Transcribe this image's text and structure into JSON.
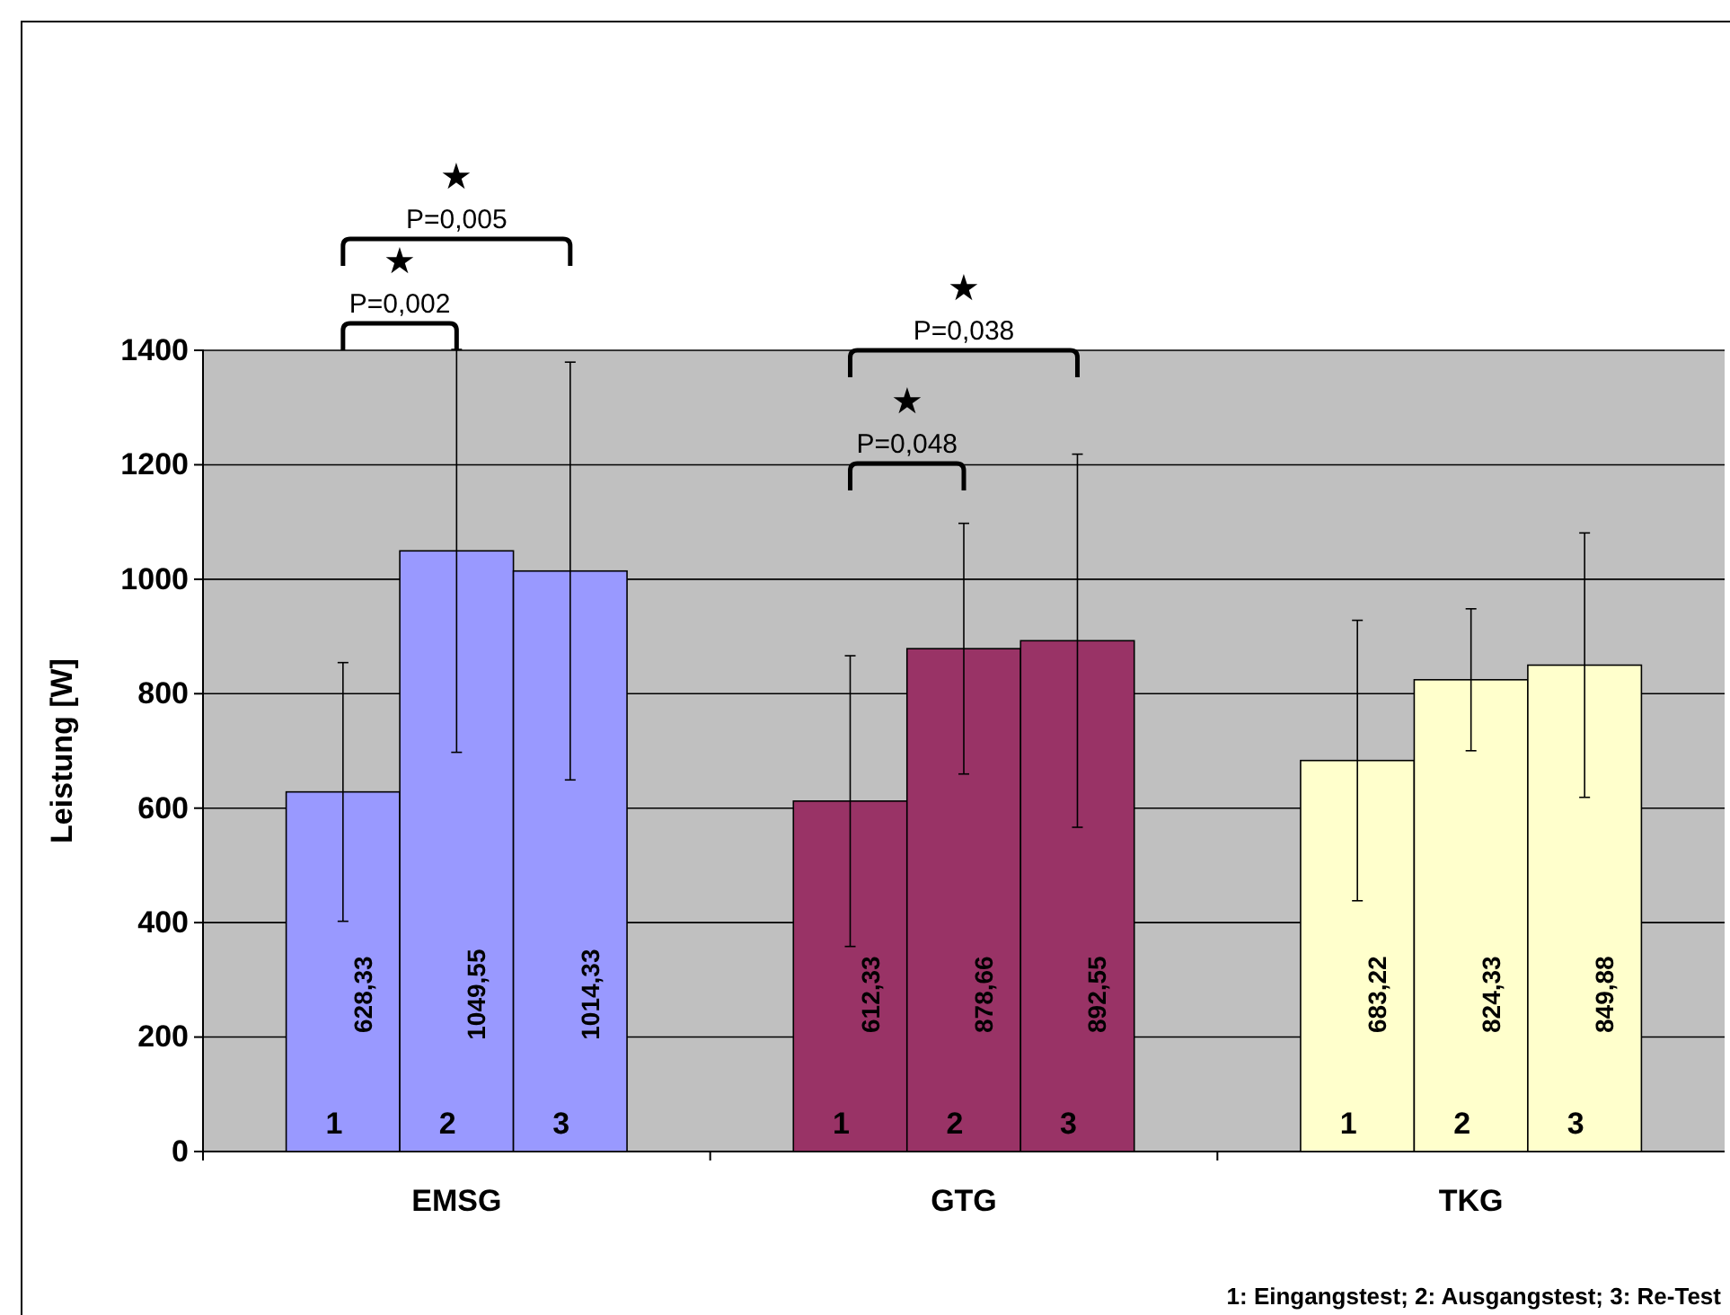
{
  "chart_data": {
    "type": "bar",
    "ylabel": "Leistung [W]",
    "categories": [
      "EMSG",
      "GTG",
      "TKG"
    ],
    "series": [
      {
        "name": "1",
        "colors": [
          "#9999ff",
          "#993366",
          "#ffffcc"
        ],
        "values": [
          628.33,
          612.33,
          683.22
        ],
        "value_labels": [
          "628,33",
          "612,33",
          "683,22"
        ],
        "errors": [
          226,
          254,
          245
        ]
      },
      {
        "name": "2",
        "colors": [
          "#9999ff",
          "#993366",
          "#ffffcc"
        ],
        "values": [
          1049.55,
          878.66,
          824.33
        ],
        "value_labels": [
          "1049,55",
          "878,66",
          "824,33"
        ],
        "errors": [
          352,
          219,
          124
        ]
      },
      {
        "name": "3",
        "colors": [
          "#9999ff",
          "#993366",
          "#ffffcc"
        ],
        "values": [
          1014.33,
          892.55,
          849.88
        ],
        "value_labels": [
          "1014,33",
          "892,55",
          "849,88"
        ],
        "errors": [
          365,
          326,
          231
        ]
      }
    ],
    "ylim": [
      0,
      1400
    ],
    "yticks": [
      0,
      200,
      400,
      600,
      800,
      1000,
      1200,
      1400
    ],
    "grid": "y",
    "annotations": [
      "★\nP=0,002",
      "★\nP=0,005",
      "★\nP=0,048",
      "★\nP=0,038",
      "1: Eingangstest; 2: Ausgangstest; 3: Re-Test"
    ]
  }
}
